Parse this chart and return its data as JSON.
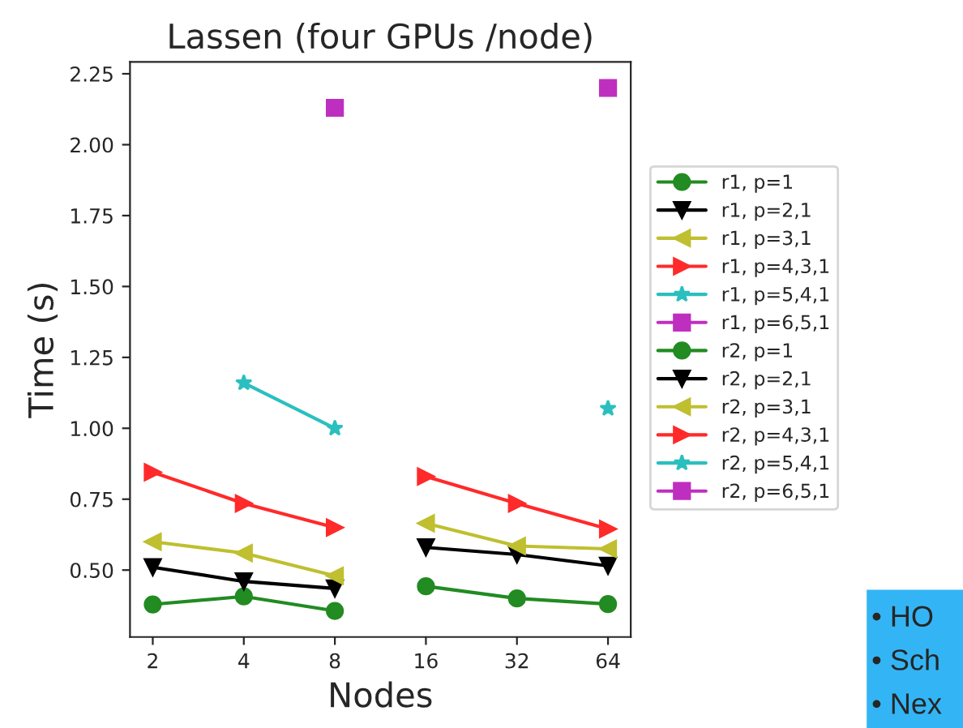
{
  "chart_data": {
    "type": "line",
    "title": "Lassen (four GPUs /node)",
    "xlabel": "Nodes",
    "ylabel": "Time (s)",
    "categories": [
      "2",
      "4",
      "8",
      "16",
      "32",
      "64"
    ],
    "ylim": [
      0.264,
      2.292
    ],
    "yticks": [
      {
        "value": 0.5,
        "label": "0.50"
      },
      {
        "value": 0.75,
        "label": "0.75"
      },
      {
        "value": 1.0,
        "label": "1.00"
      },
      {
        "value": 1.25,
        "label": "1.25"
      },
      {
        "value": 1.5,
        "label": "1.50"
      },
      {
        "value": 1.75,
        "label": "1.75"
      },
      {
        "value": 2.0,
        "label": "2.00"
      },
      {
        "value": 2.25,
        "label": "2.25"
      }
    ],
    "grid": false,
    "legend": "right",
    "series": [
      {
        "name": "r1, p=1",
        "color": "#228b22",
        "marker": "circle",
        "values": [
          0.379,
          0.407,
          0.356,
          null,
          null,
          null
        ]
      },
      {
        "name": "r1, p=2,1",
        "color": "#000000",
        "marker": "triangle_down",
        "values": [
          0.51,
          0.46,
          0.435,
          null,
          null,
          null
        ]
      },
      {
        "name": "r1, p=3,1",
        "color": "#bfbf30",
        "marker": "triangle_left",
        "values": [
          0.6,
          0.56,
          0.48,
          null,
          null,
          null
        ]
      },
      {
        "name": "r1, p=4,3,1",
        "color": "#ff2a2a",
        "marker": "triangle_right",
        "values": [
          0.845,
          0.735,
          0.65,
          null,
          null,
          null
        ]
      },
      {
        "name": "r1, p=5,4,1",
        "color": "#2bbfbf",
        "marker": "star",
        "values": [
          null,
          1.16,
          1.0,
          null,
          null,
          null
        ]
      },
      {
        "name": "r1, p=6,5,1",
        "color": "#bf2fbf",
        "marker": "square",
        "values": [
          null,
          null,
          2.13,
          null,
          null,
          null
        ]
      },
      {
        "name": "r2, p=1",
        "color": "#228b22",
        "marker": "circle",
        "values": [
          null,
          null,
          null,
          0.443,
          0.4,
          0.38
        ]
      },
      {
        "name": "r2, p=2,1",
        "color": "#000000",
        "marker": "triangle_down",
        "values": [
          null,
          null,
          null,
          0.58,
          0.555,
          0.515
        ]
      },
      {
        "name": "r2, p=3,1",
        "color": "#bfbf30",
        "marker": "triangle_left",
        "values": [
          null,
          null,
          null,
          0.665,
          0.585,
          0.575
        ]
      },
      {
        "name": "r2, p=4,3,1",
        "color": "#ff2a2a",
        "marker": "triangle_right",
        "values": [
          null,
          null,
          null,
          0.83,
          0.735,
          0.645
        ]
      },
      {
        "name": "r2, p=5,4,1",
        "color": "#2bbfbf",
        "marker": "star",
        "values": [
          null,
          null,
          null,
          null,
          null,
          1.07
        ]
      },
      {
        "name": "r2, p=6,5,1",
        "color": "#bf2fbf",
        "marker": "square",
        "values": [
          null,
          null,
          null,
          null,
          null,
          2.2
        ]
      }
    ],
    "annotations": [
      "• HO",
      "• Sch",
      "• Nex"
    ]
  }
}
